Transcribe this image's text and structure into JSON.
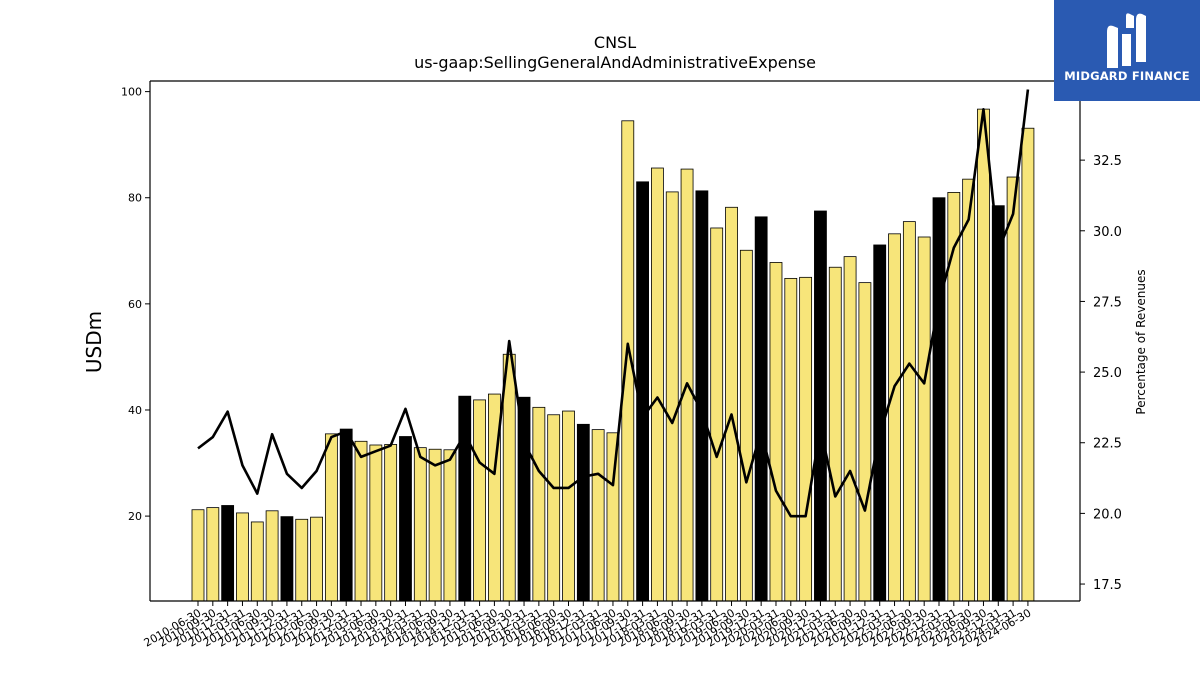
{
  "chart_data": {
    "type": "bar",
    "title": "CNSL",
    "subtitle": "us-gaap:SellingGeneralAndAdministrativeExpense",
    "ylabel": "USDm",
    "y2label": "Percentage of Revenues",
    "ylim": [
      4,
      102
    ],
    "y2lim": [
      16.9,
      35.3
    ],
    "yticks": [
      20,
      40,
      60,
      80,
      100
    ],
    "y2ticks": [
      "17.5",
      "20.0",
      "22.5",
      "25.0",
      "27.5",
      "30.0",
      "32.5"
    ],
    "bar_color_default": "#f7e57a",
    "bar_color_highlight": "#000000",
    "line_color": "#000000",
    "categories": [
      "2010-06-30",
      "2010-09-30",
      "2010-12-31",
      "2011-03-31",
      "2011-06-30",
      "2011-09-30",
      "2011-12-31",
      "2012-03-31",
      "2012-06-30",
      "2012-09-30",
      "2012-12-31",
      "2013-03-31",
      "2013-06-30",
      "2013-09-30",
      "2013-12-31",
      "2014-03-31",
      "2014-06-30",
      "2014-09-30",
      "2014-12-31",
      "2015-03-31",
      "2015-06-30",
      "2015-09-30",
      "2015-12-31",
      "2016-03-31",
      "2016-06-30",
      "2016-09-30",
      "2016-12-31",
      "2017-03-31",
      "2017-06-30",
      "2017-09-30",
      "2017-12-31",
      "2018-03-31",
      "2018-06-30",
      "2018-09-30",
      "2018-12-31",
      "2019-03-31",
      "2019-06-30",
      "2019-09-30",
      "2019-12-31",
      "2020-03-31",
      "2020-06-30",
      "2020-09-30",
      "2020-12-31",
      "2021-03-31",
      "2021-06-30",
      "2021-09-30",
      "2021-12-31",
      "2022-03-31",
      "2022-06-30",
      "2022-09-30",
      "2022-12-31",
      "2023-03-31",
      "2023-06-30",
      "2023-09-30",
      "2023-12-31",
      "2024-03-31",
      "2024-06-30"
    ],
    "tick_labels_shown": [
      "2010-06-30",
      "2010-09-30",
      "2010-12-31",
      "2011-03-31",
      "2011-06-30",
      "2011-09-30",
      "2011-12-31",
      "2012-03-31",
      "2012-06-30",
      "2012-09-30",
      "2012-12-31",
      "2013-03-31",
      "2013-06-30",
      "2013-09-30",
      "2013-12-31",
      "2014-03-31",
      "2014-06-30",
      "2014-09-30",
      "2014-12-31",
      "2015-03-31",
      "2015-06-30",
      "2015-09-30",
      "2015-12-31",
      "2016-03-31",
      "2016-06-30",
      "2016-09-30",
      "2016-12-31",
      "2017-03-31",
      "2017-06-30",
      "2017-09-30",
      "2017-12-31",
      "2018-03-31",
      "2018-06-30",
      "2018-09-30",
      "2018-12-31",
      "2019-03-31",
      "2019-06-30",
      "2019-09-30",
      "2019-12-31",
      "2020-03-31",
      "2020-06-30",
      "2020-09-30",
      "2020-12-31",
      "2021-03-31",
      "2021-06-30",
      "2021-09-30",
      "2021-12-31",
      "2022-03-31",
      "2022-06-30",
      "2022-09-30",
      "2022-12-31",
      "2023-03-31",
      "2023-06-30",
      "2023-09-30",
      "2023-12-31",
      "2024-03-31",
      "2024-06-30"
    ],
    "series": [
      {
        "type": "bar",
        "axis": "left",
        "values": [
          21.2,
          21.6,
          22.0,
          20.6,
          18.9,
          21.0,
          19.9,
          19.4,
          19.8,
          35.5,
          36.4,
          34.1,
          33.4,
          33.5,
          35.0,
          32.9,
          32.6,
          32.5,
          42.6,
          41.9,
          43.0,
          50.5,
          42.4,
          40.5,
          39.1,
          39.8,
          37.3,
          36.3,
          35.7,
          94.5,
          83.0,
          85.6,
          81.1,
          85.4,
          81.3,
          74.3,
          78.2,
          70.1,
          76.4,
          67.8,
          64.8,
          65.0,
          77.5,
          66.9,
          68.9,
          64.0,
          71.1,
          73.2,
          75.5,
          72.6,
          80.0,
          81.0,
          83.5,
          96.7,
          78.5,
          83.9,
          93.1
        ],
        "highlight": [
          false,
          false,
          true,
          false,
          false,
          false,
          true,
          false,
          false,
          false,
          true,
          false,
          false,
          false,
          true,
          false,
          false,
          false,
          true,
          false,
          false,
          false,
          true,
          false,
          false,
          false,
          true,
          false,
          false,
          false,
          true,
          false,
          false,
          false,
          true,
          false,
          false,
          false,
          true,
          false,
          false,
          false,
          true,
          false,
          false,
          false,
          true,
          false,
          false,
          false,
          true,
          false,
          false,
          false,
          true,
          false,
          false
        ]
      },
      {
        "type": "line",
        "axis": "right",
        "values": [
          22.3,
          22.7,
          23.6,
          21.7,
          20.7,
          22.8,
          21.4,
          20.9,
          21.5,
          22.7,
          22.9,
          22.0,
          22.2,
          22.4,
          23.7,
          22.0,
          21.7,
          21.9,
          22.8,
          21.8,
          21.4,
          26.1,
          22.5,
          21.5,
          20.9,
          20.9,
          21.3,
          21.4,
          21.0,
          26.0,
          23.4,
          24.1,
          23.2,
          24.6,
          23.6,
          22.0,
          23.5,
          21.1,
          22.9,
          20.8,
          19.9,
          19.9,
          23.0,
          20.6,
          21.5,
          20.1,
          22.8,
          24.5,
          25.3,
          24.6,
          27.5,
          29.4,
          30.4,
          34.3,
          29.3,
          30.6,
          35.0
        ]
      }
    ],
    "grid": false,
    "legend": "none"
  },
  "logo": {
    "brand": "MIDGARD FINANCE"
  }
}
